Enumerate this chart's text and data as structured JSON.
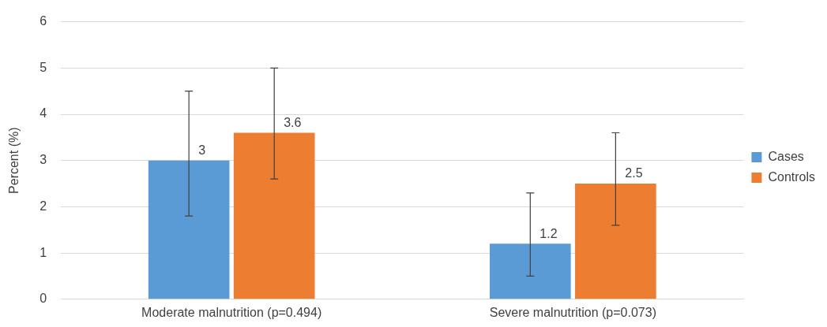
{
  "chart_data": {
    "type": "bar",
    "ylabel": "Percent (%)",
    "categories": [
      "Moderate malnutrition (p=0.494)",
      "Severe malnutrition (p=0.073)"
    ],
    "series": [
      {
        "name": "Cases",
        "color": "#5b9bd5",
        "values": [
          3,
          1.2
        ],
        "errors": [
          [
            1.8,
            4.5
          ],
          [
            0.5,
            2.3
          ]
        ]
      },
      {
        "name": "Controls",
        "color": "#ed7d31",
        "values": [
          3.6,
          2.5
        ],
        "errors": [
          [
            2.6,
            5.0
          ],
          [
            1.6,
            3.6
          ]
        ]
      }
    ],
    "ylim": [
      0,
      6
    ],
    "yticks": [
      0,
      1,
      2,
      3,
      4,
      5,
      6
    ],
    "grid": "y",
    "legend": "right",
    "data_labels": true
  }
}
